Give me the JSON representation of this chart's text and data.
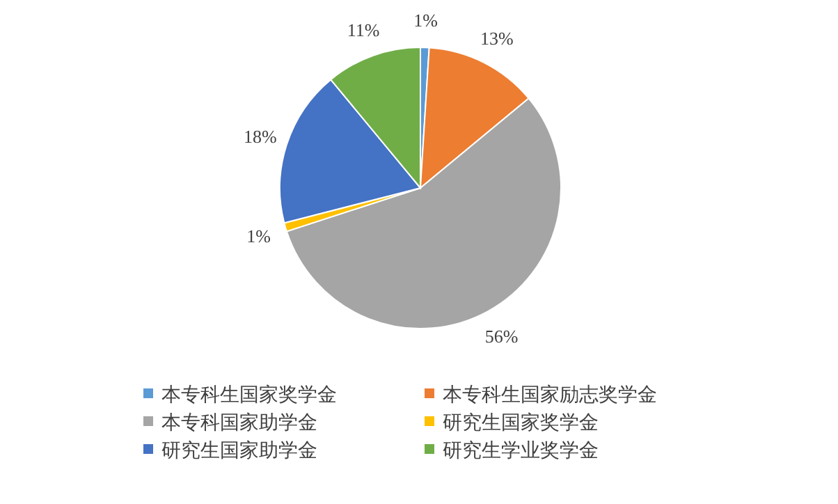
{
  "chart_data": {
    "type": "pie",
    "categories": [
      "本专科生国家奖学金",
      "本专科生国家励志奖学金",
      "本专科国家助学金",
      "研究生国家奖学金",
      "研究生国家助学金",
      "研究生学业奖学金"
    ],
    "values": [
      1,
      13,
      56,
      1,
      18,
      11
    ],
    "colors": [
      "#5b9bd5",
      "#ed7d31",
      "#a5a5a5",
      "#ffc000",
      "#4472c4",
      "#70ad47"
    ],
    "value_labels": [
      "1%",
      "13%",
      "56%",
      "1%",
      "18%",
      "11%"
    ],
    "legend": "bottom"
  }
}
